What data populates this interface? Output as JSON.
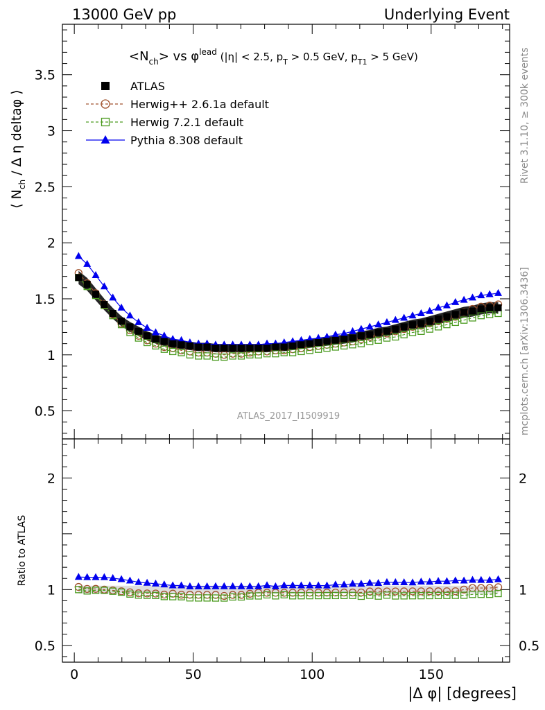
{
  "header": {
    "left": "13000 GeV pp",
    "right": "Underlying Event"
  },
  "side_labels": {
    "rivet": "Rivet 3.1.10, ≥ 300k events",
    "mcplots": "mcplots.cern.ch [arXiv:1306.3436]"
  },
  "chart_data": {
    "type": "scatter",
    "title": "<N_ch> vs φ^lead (|η| < 2.5, p_T > 0.5 GeV, p_T1 > 5 GeV)",
    "analysis_id": "ATLAS_2017_I1509919",
    "xlabel": "|Δ φ| [degrees]",
    "ylabel": "⟨ N_ch / Δ η deltaφ ⟩",
    "ratio_ylabel": "Ratio to ATLAS",
    "xlim": [
      -5,
      183
    ],
    "ylim": [
      0.25,
      3.95
    ],
    "ratio_ylim": [
      0.35,
      2.35
    ],
    "x_ticks": [
      "0",
      "50",
      "100",
      "150"
    ],
    "y_ticks": [
      "0.5",
      "1",
      "1.5",
      "2",
      "2.5",
      "3",
      "3.5"
    ],
    "ratio_y_ticks": [
      "0.5",
      "1",
      "2"
    ],
    "legend_placement": "top-left",
    "x": [
      1.8,
      5.4,
      9.0,
      12.6,
      16.2,
      19.8,
      23.4,
      27.0,
      30.6,
      34.2,
      37.8,
      41.4,
      45.0,
      48.6,
      52.2,
      55.8,
      59.4,
      63.0,
      66.6,
      70.2,
      73.8,
      77.4,
      81.0,
      84.6,
      88.2,
      91.8,
      95.4,
      99.0,
      102.6,
      106.2,
      109.8,
      113.4,
      117.0,
      120.6,
      124.2,
      127.8,
      131.4,
      135.0,
      138.6,
      142.2,
      145.8,
      149.4,
      153.0,
      156.6,
      160.2,
      163.8,
      167.4,
      171.0,
      174.6,
      178.2
    ],
    "series": [
      {
        "name": "ATLAS",
        "style": "data",
        "color": "#000000",
        "marker": "filled-square",
        "values": [
          1.69,
          1.63,
          1.54,
          1.45,
          1.37,
          1.3,
          1.25,
          1.21,
          1.17,
          1.14,
          1.12,
          1.1,
          1.09,
          1.08,
          1.07,
          1.07,
          1.06,
          1.06,
          1.06,
          1.06,
          1.06,
          1.06,
          1.06,
          1.07,
          1.07,
          1.08,
          1.09,
          1.1,
          1.11,
          1.12,
          1.13,
          1.14,
          1.15,
          1.17,
          1.18,
          1.2,
          1.21,
          1.23,
          1.25,
          1.27,
          1.28,
          1.3,
          1.32,
          1.34,
          1.36,
          1.38,
          1.39,
          1.41,
          1.42,
          1.42
        ]
      },
      {
        "name": "Herwig++ 2.6.1a default",
        "style": "dashed",
        "color": "#a0522d",
        "marker": "open-circle",
        "values": [
          1.73,
          1.64,
          1.55,
          1.45,
          1.36,
          1.28,
          1.22,
          1.17,
          1.13,
          1.1,
          1.07,
          1.06,
          1.04,
          1.03,
          1.02,
          1.02,
          1.01,
          1.0,
          1.01,
          1.01,
          1.02,
          1.03,
          1.03,
          1.04,
          1.04,
          1.05,
          1.06,
          1.07,
          1.08,
          1.09,
          1.1,
          1.11,
          1.12,
          1.14,
          1.16,
          1.18,
          1.19,
          1.21,
          1.23,
          1.25,
          1.26,
          1.28,
          1.3,
          1.32,
          1.34,
          1.38,
          1.41,
          1.43,
          1.44,
          1.45
        ]
      },
      {
        "name": "Herwig 7.2.1 default",
        "style": "dashed",
        "color": "#4a9a1e",
        "marker": "open-square",
        "values": [
          1.69,
          1.61,
          1.53,
          1.44,
          1.35,
          1.27,
          1.2,
          1.15,
          1.11,
          1.08,
          1.05,
          1.03,
          1.02,
          1.0,
          0.99,
          0.99,
          0.98,
          0.98,
          0.99,
          0.99,
          1.0,
          1.0,
          1.01,
          1.01,
          1.02,
          1.02,
          1.03,
          1.04,
          1.05,
          1.06,
          1.07,
          1.08,
          1.09,
          1.1,
          1.12,
          1.13,
          1.15,
          1.16,
          1.18,
          1.2,
          1.21,
          1.23,
          1.25,
          1.27,
          1.29,
          1.31,
          1.33,
          1.35,
          1.36,
          1.37
        ]
      },
      {
        "name": "Pythia 8.308 default",
        "style": "solid",
        "color": "#0000ee",
        "marker": "filled-triangle",
        "values": [
          1.88,
          1.81,
          1.71,
          1.61,
          1.51,
          1.42,
          1.35,
          1.29,
          1.24,
          1.2,
          1.17,
          1.14,
          1.13,
          1.11,
          1.1,
          1.1,
          1.09,
          1.09,
          1.09,
          1.09,
          1.09,
          1.09,
          1.1,
          1.1,
          1.11,
          1.12,
          1.13,
          1.14,
          1.15,
          1.16,
          1.18,
          1.19,
          1.21,
          1.23,
          1.25,
          1.27,
          1.29,
          1.31,
          1.33,
          1.35,
          1.37,
          1.39,
          1.42,
          1.44,
          1.47,
          1.49,
          1.51,
          1.53,
          1.54,
          1.55
        ]
      }
    ]
  }
}
